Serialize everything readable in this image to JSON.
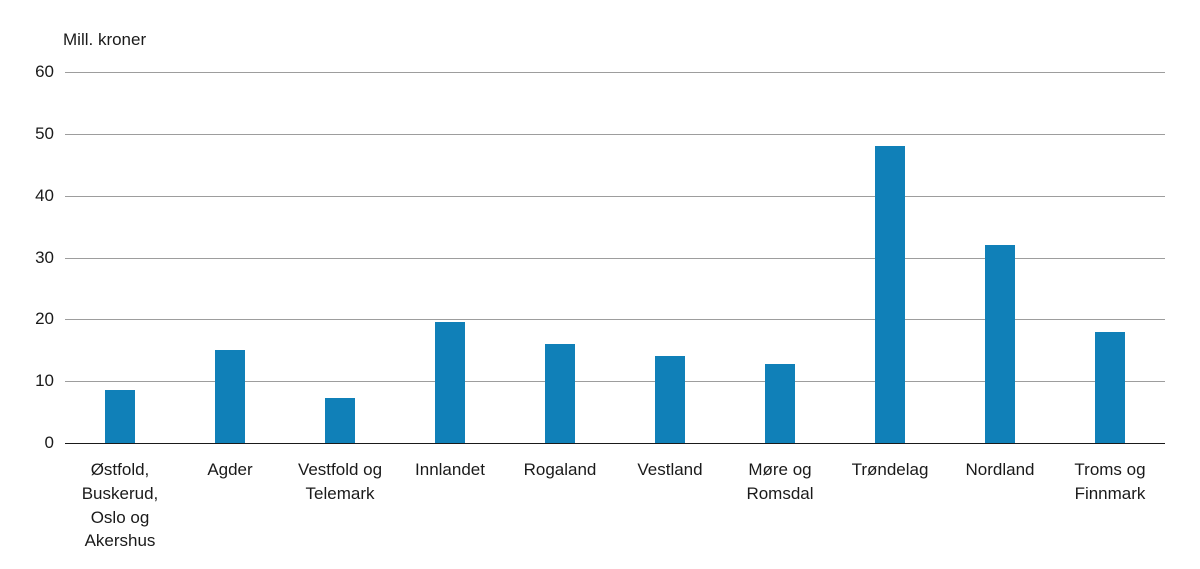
{
  "chart_data": {
    "type": "bar",
    "title": "",
    "unit_label": "Mill. kroner",
    "categories": [
      "Østfold, Buskerud, Oslo og Akershus",
      "Agder",
      "Vestfold og Telemark",
      "Innlandet",
      "Rogaland",
      "Vestland",
      "Møre og Romsdal",
      "Trøndelag",
      "Nordland",
      "Troms og Finnmark"
    ],
    "values": [
      8.5,
      15,
      7.2,
      19.5,
      16,
      14,
      12.8,
      48,
      32,
      18
    ],
    "xlabel": "",
    "ylabel": "Mill. kroner",
    "ylim": [
      0,
      60
    ],
    "yticks": [
      0,
      10,
      20,
      30,
      40,
      50,
      60
    ],
    "grid": "horizontal",
    "legend": "none",
    "bar_color": "#1080b8",
    "gridline_color": "#9d9d9d",
    "axis_color": "#1a1a1a"
  }
}
